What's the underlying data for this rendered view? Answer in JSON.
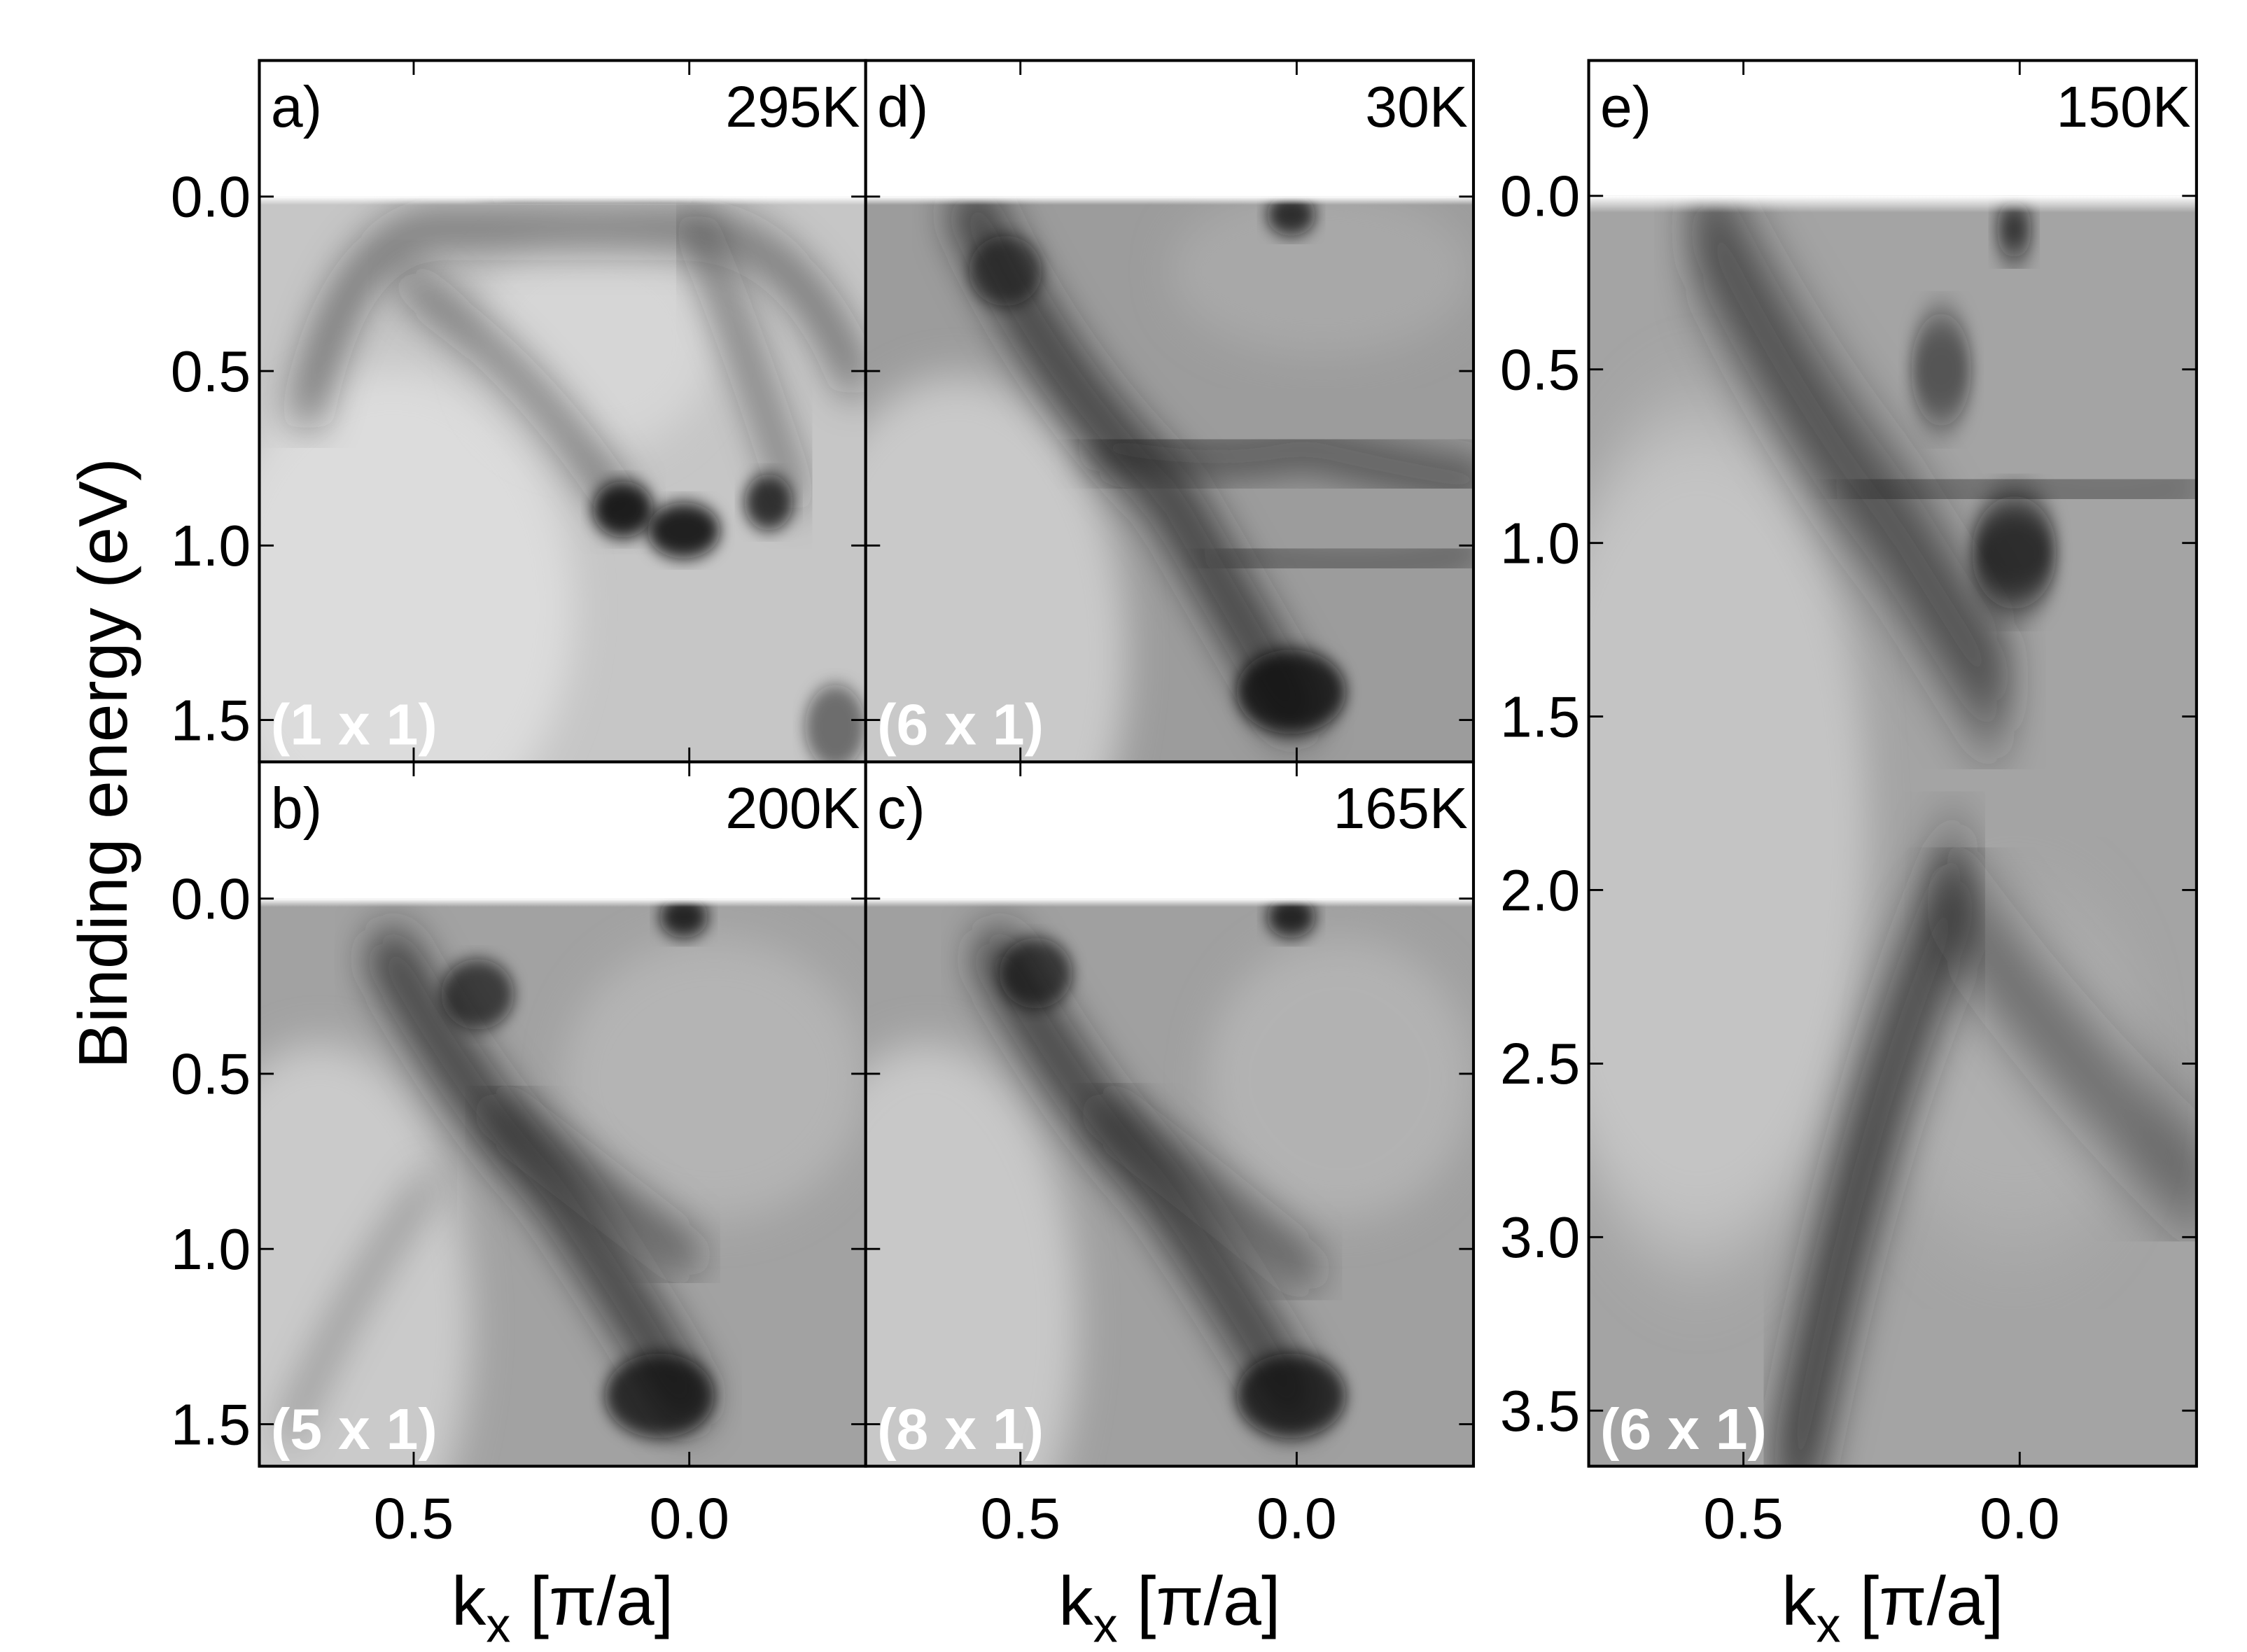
{
  "chart_data": [
    {
      "type": "arpes-map",
      "panel_label": "a)",
      "temperature": "295K",
      "reconstruction": "(1 x 1)",
      "y_label": "Binding energy (eV)",
      "xlim": [
        0.78,
        -0.32
      ],
      "xticks": [
        0.5,
        {
          "value": 0,
          "label": "0.0"
        }
      ],
      "show_xtick_labels": false,
      "ylim": [
        -0.39,
        1.62
      ],
      "yticks": [
        {
          "value": 0,
          "label": "0.0"
        },
        0.5,
        {
          "value": 1,
          "label": "1.0"
        },
        1.5
      ],
      "show_ytick_labels": true
    },
    {
      "type": "arpes-map",
      "panel_label": "d)",
      "temperature": "30K",
      "reconstruction": "(6 x 1)",
      "xlim": [
        0.78,
        -0.32
      ],
      "xticks": [
        0.5,
        0
      ],
      "show_xtick_labels": false,
      "ylim": [
        -0.39,
        1.62
      ],
      "yticks": [
        0,
        0.5,
        1,
        1.5
      ],
      "show_ytick_labels": false
    },
    {
      "type": "arpes-map",
      "panel_label": "b)",
      "temperature": "200K",
      "reconstruction": "(5 x 1)",
      "x_label": [
        "k",
        "x",
        " [π/a]"
      ],
      "xlim": [
        0.78,
        -0.32
      ],
      "xticks": [
        0.5,
        {
          "value": 0,
          "label": "0.0"
        }
      ],
      "show_xtick_labels": true,
      "ylim": [
        -0.39,
        1.62
      ],
      "yticks": [
        {
          "value": 0,
          "label": "0.0"
        },
        0.5,
        {
          "value": 1,
          "label": "1.0"
        },
        1.5
      ],
      "show_ytick_labels": true
    },
    {
      "type": "arpes-map",
      "panel_label": "c)",
      "temperature": "165K",
      "reconstruction": "(8 x 1)",
      "x_label": [
        "k",
        "x",
        " [π/a]"
      ],
      "xlim": [
        0.78,
        -0.32
      ],
      "xticks": [
        0.5,
        {
          "value": 0,
          "label": "0.0"
        }
      ],
      "show_xtick_labels": true,
      "ylim": [
        -0.39,
        1.62
      ],
      "yticks": [
        0,
        0.5,
        1,
        1.5
      ],
      "show_ytick_labels": false
    },
    {
      "type": "arpes-map",
      "panel_label": "e)",
      "temperature": "150K",
      "reconstruction": "(6 x 1)",
      "x_label": [
        "k",
        "x",
        " [π/a]"
      ],
      "xlim": [
        0.78,
        -0.32
      ],
      "xticks": [
        0.5,
        {
          "value": 0,
          "label": "0.0"
        }
      ],
      "show_xtick_labels": true,
      "ylim": [
        -0.39,
        3.66
      ],
      "yticks": [
        {
          "value": 0,
          "label": "0.0"
        },
        0.5,
        {
          "value": 1,
          "label": "1.0"
        },
        1.5,
        {
          "value": 2,
          "label": "2.0"
        },
        2.5,
        {
          "value": 3,
          "label": "3.0"
        },
        3.5
      ],
      "show_ytick_labels": true
    }
  ]
}
